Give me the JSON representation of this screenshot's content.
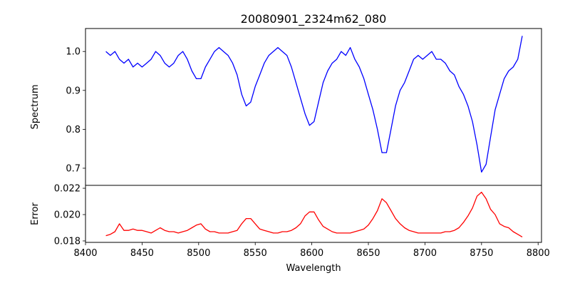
{
  "chart_data": {
    "type": "line",
    "title": "20080901_2324m62_080",
    "xlabel": "Wavelength",
    "xlim": [
      8400,
      8803
    ],
    "xticks": [
      8400,
      8450,
      8500,
      8550,
      8600,
      8650,
      8700,
      8750,
      8800
    ],
    "x": [
      8418,
      8422,
      8426,
      8430,
      8434,
      8438,
      8442,
      8446,
      8450,
      8454,
      8458,
      8462,
      8466,
      8470,
      8474,
      8478,
      8482,
      8486,
      8490,
      8494,
      8498,
      8502,
      8506,
      8510,
      8514,
      8518,
      8522,
      8526,
      8530,
      8534,
      8538,
      8542,
      8546,
      8550,
      8554,
      8558,
      8562,
      8566,
      8570,
      8574,
      8578,
      8582,
      8586,
      8590,
      8594,
      8598,
      8602,
      8606,
      8610,
      8614,
      8618,
      8622,
      8626,
      8630,
      8634,
      8638,
      8642,
      8646,
      8650,
      8654,
      8658,
      8662,
      8666,
      8670,
      8674,
      8678,
      8682,
      8686,
      8690,
      8694,
      8698,
      8702,
      8706,
      8710,
      8714,
      8718,
      8722,
      8726,
      8730,
      8734,
      8738,
      8742,
      8746,
      8750,
      8754,
      8758,
      8762,
      8766,
      8770,
      8774,
      8778,
      8782,
      8786
    ],
    "panels": [
      {
        "ylabel": "Spectrum",
        "ylim": [
          0.656,
          1.059
        ],
        "yticks": [
          0.7,
          0.8,
          0.9,
          1.0
        ],
        "ytick_labels": [
          "0.7",
          "0.8",
          "0.9",
          "1.0"
        ],
        "series": [
          {
            "name": "Spectrum",
            "color": "#0000ff",
            "values": [
              1.0,
              0.99,
              1.0,
              0.98,
              0.97,
              0.98,
              0.96,
              0.97,
              0.96,
              0.97,
              0.98,
              1.0,
              0.99,
              0.97,
              0.96,
              0.97,
              0.99,
              1.0,
              0.98,
              0.95,
              0.93,
              0.93,
              0.96,
              0.98,
              1.0,
              1.01,
              1.0,
              0.99,
              0.97,
              0.94,
              0.89,
              0.86,
              0.87,
              0.91,
              0.94,
              0.97,
              0.99,
              1.0,
              1.01,
              1.0,
              0.99,
              0.96,
              0.92,
              0.88,
              0.84,
              0.81,
              0.82,
              0.87,
              0.92,
              0.95,
              0.97,
              0.98,
              1.0,
              0.99,
              1.01,
              0.98,
              0.96,
              0.93,
              0.89,
              0.85,
              0.8,
              0.74,
              0.74,
              0.8,
              0.86,
              0.9,
              0.92,
              0.95,
              0.98,
              0.99,
              0.98,
              0.99,
              1.0,
              0.98,
              0.98,
              0.97,
              0.95,
              0.94,
              0.91,
              0.89,
              0.86,
              0.82,
              0.76,
              0.69,
              0.71,
              0.78,
              0.85,
              0.89,
              0.93,
              0.95,
              0.96,
              0.98,
              1.04
            ]
          }
        ]
      },
      {
        "ylabel": "Error",
        "ylim": [
          0.01789,
          0.02222
        ],
        "yticks": [
          0.018,
          0.02,
          0.022
        ],
        "ytick_labels": [
          "0.018",
          "0.020",
          "0.022"
        ],
        "series": [
          {
            "name": "Error",
            "color": "#ff0000",
            "values": [
              0.0184,
              0.0185,
              0.0187,
              0.0193,
              0.0188,
              0.0188,
              0.0189,
              0.0188,
              0.0188,
              0.0187,
              0.0186,
              0.0188,
              0.019,
              0.0188,
              0.0187,
              0.0187,
              0.0186,
              0.0187,
              0.0188,
              0.019,
              0.0192,
              0.0193,
              0.0189,
              0.0187,
              0.0187,
              0.0186,
              0.0186,
              0.0186,
              0.0187,
              0.0188,
              0.0193,
              0.0197,
              0.0197,
              0.0193,
              0.0189,
              0.0188,
              0.0187,
              0.0186,
              0.0186,
              0.0187,
              0.0187,
              0.0188,
              0.019,
              0.0193,
              0.0199,
              0.0202,
              0.0202,
              0.0196,
              0.0191,
              0.0189,
              0.0187,
              0.0186,
              0.0186,
              0.0186,
              0.0186,
              0.0187,
              0.0188,
              0.0189,
              0.0192,
              0.0197,
              0.0203,
              0.0212,
              0.0209,
              0.0203,
              0.0197,
              0.0193,
              0.019,
              0.0188,
              0.0187,
              0.0186,
              0.0186,
              0.0186,
              0.0186,
              0.0186,
              0.0186,
              0.0187,
              0.0187,
              0.0188,
              0.019,
              0.0194,
              0.0199,
              0.0205,
              0.0214,
              0.0217,
              0.0212,
              0.0204,
              0.02,
              0.0193,
              0.0191,
              0.019,
              0.0187,
              0.0185,
              0.0183
            ]
          }
        ]
      }
    ]
  }
}
